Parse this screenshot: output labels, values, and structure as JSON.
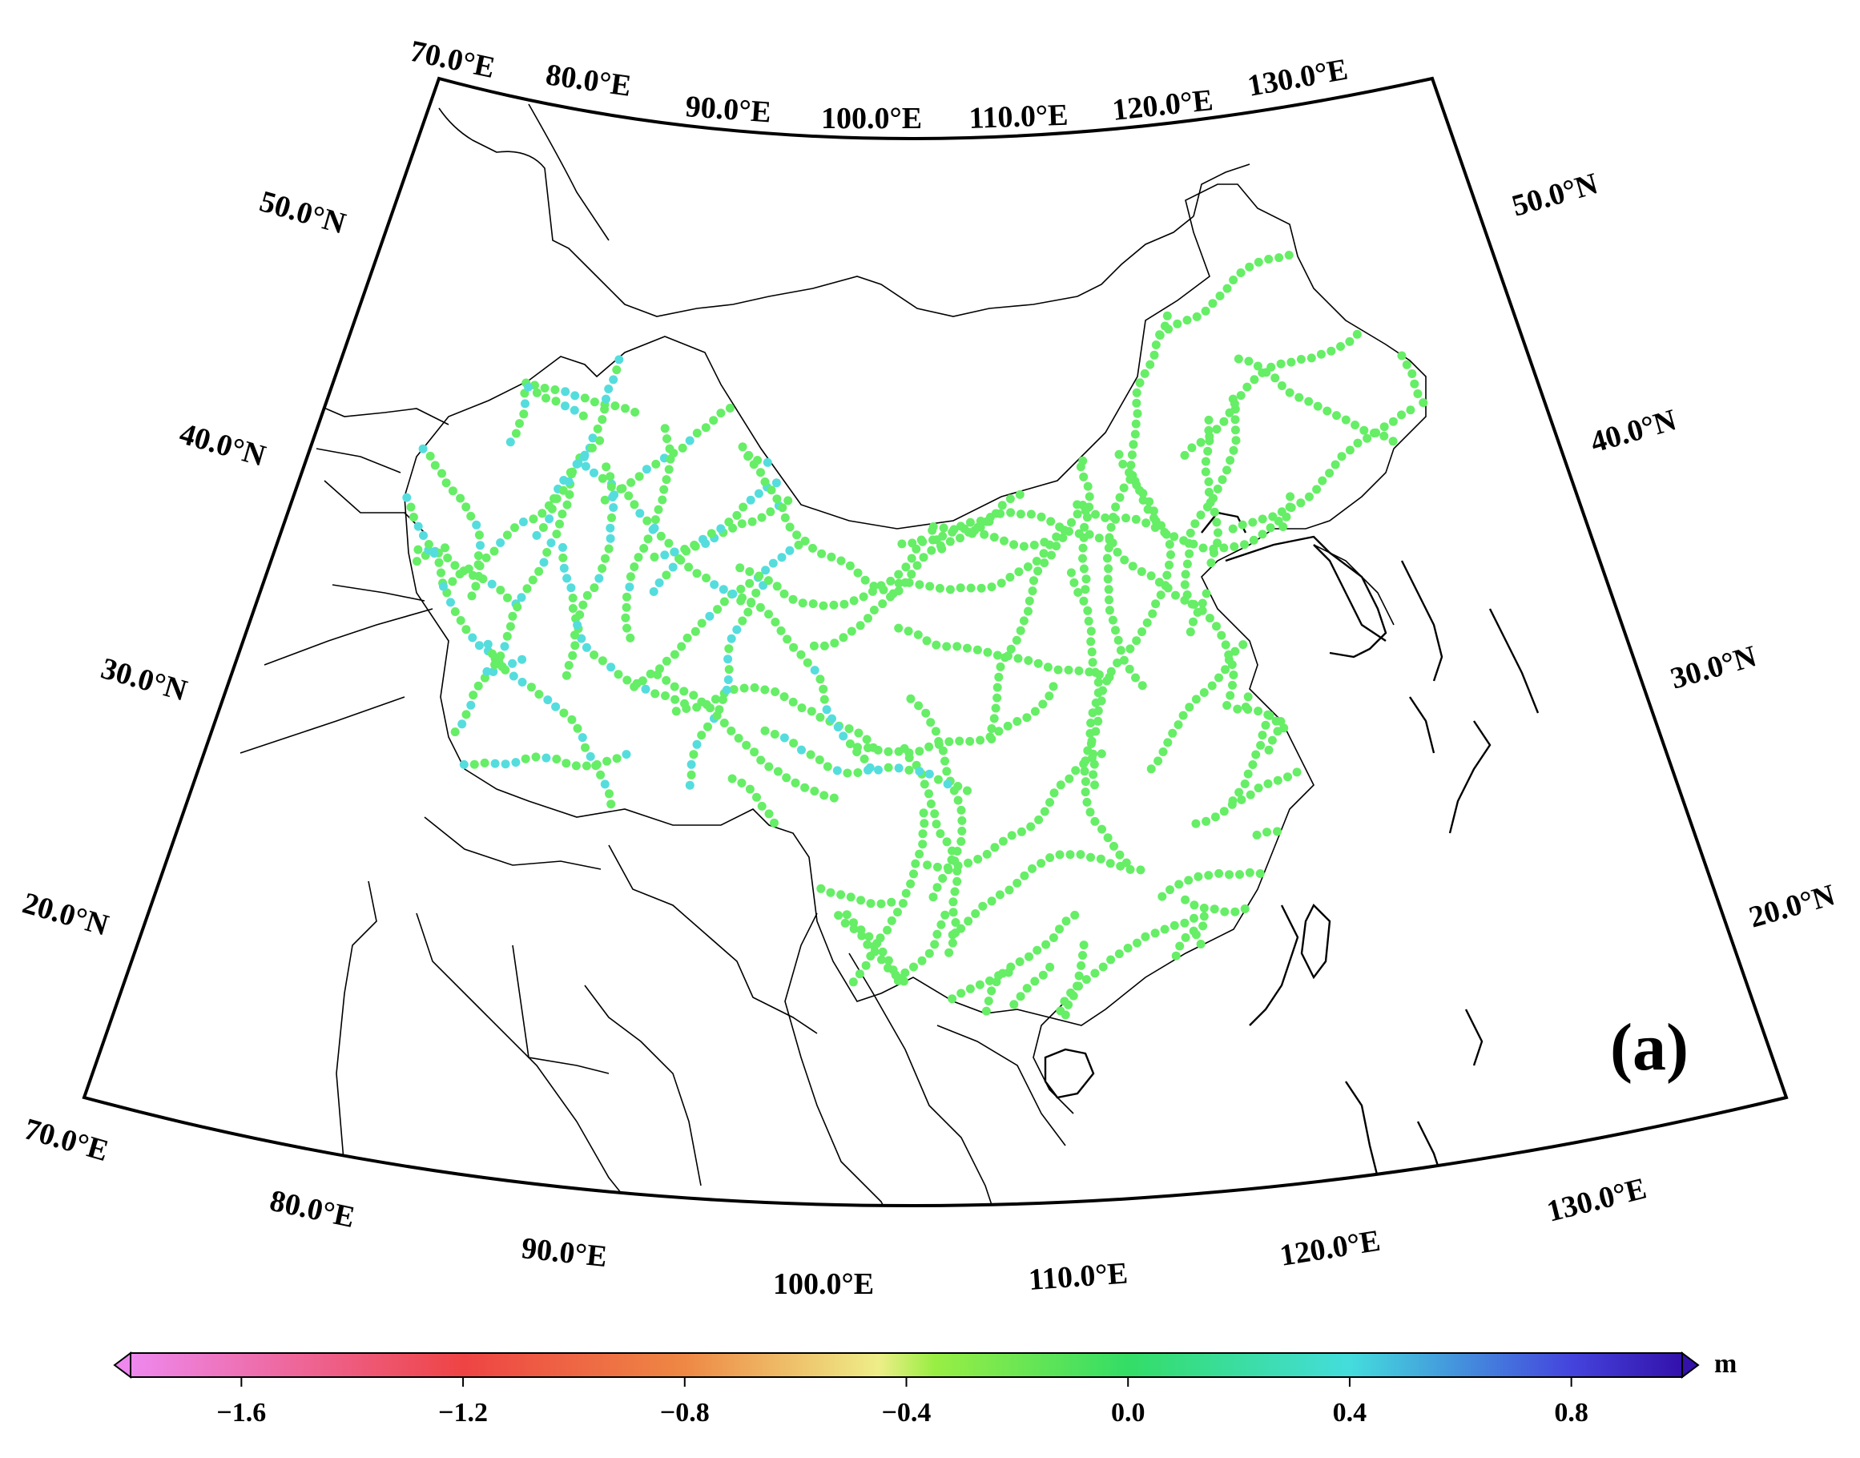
{
  "map": {
    "panel_label": "(a)",
    "projection": "conic",
    "extent": {
      "lon": [
        70,
        140
      ],
      "lat": [
        15,
        55
      ]
    },
    "top_lon_labels": [
      "70.0°E",
      "80.0°E",
      "90.0°E",
      "100.0°E",
      "110.0°E",
      "120.0°E",
      "130.0°E"
    ],
    "bottom_lon_labels": [
      "70.0°E",
      "80.0°E",
      "90.0°E",
      "100.0°E",
      "110.0°E",
      "120.0°E",
      "130.0°E"
    ],
    "left_lat_labels": [
      "50.0°N",
      "40.0°N",
      "30.0°N",
      "20.0°N"
    ],
    "right_lat_labels": [
      "50.0°N",
      "40.0°N",
      "30.0°N",
      "20.0°N"
    ],
    "point_color_dominant": "#66ee66",
    "point_color_alt": "#55dddd"
  },
  "colorbar": {
    "unit": "m",
    "range": [
      -1.8,
      1.0
    ],
    "tick_labels": [
      "−1.6",
      "−1.2",
      "−0.8",
      "−0.4",
      "0.0",
      "0.4",
      "0.8"
    ],
    "tick_values": [
      -1.6,
      -1.2,
      -0.8,
      -0.4,
      0.0,
      0.4,
      0.8
    ],
    "stops": [
      {
        "v": -1.8,
        "color": "#ee88ee"
      },
      {
        "v": -1.2,
        "color": "#ee4444"
      },
      {
        "v": -0.8,
        "color": "#ee8844"
      },
      {
        "v": -0.45,
        "color": "#eeee88"
      },
      {
        "v": -0.35,
        "color": "#99ee44"
      },
      {
        "v": 0.0,
        "color": "#33dd66"
      },
      {
        "v": 0.4,
        "color": "#44dddd"
      },
      {
        "v": 0.8,
        "color": "#4444dd"
      },
      {
        "v": 1.0,
        "color": "#3311aa"
      }
    ]
  }
}
